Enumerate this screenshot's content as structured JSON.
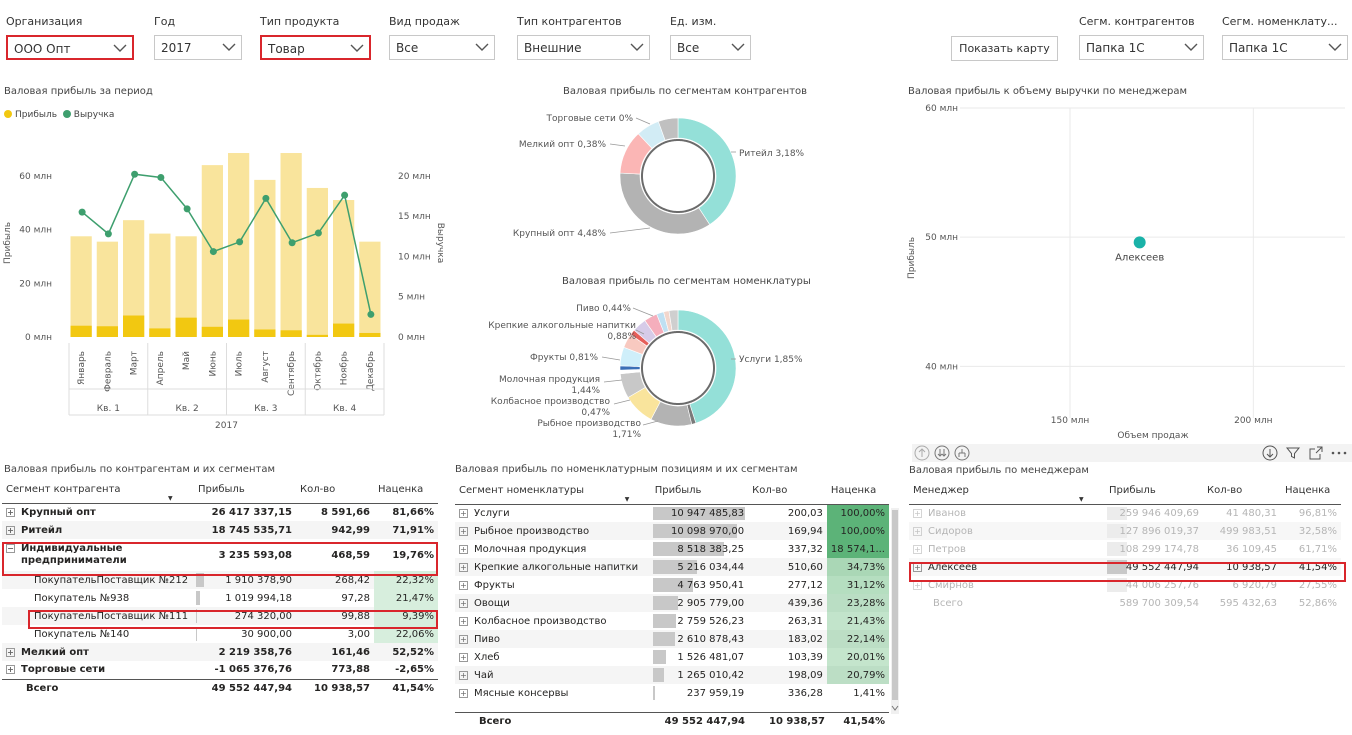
{
  "slicers": [
    {
      "label": "Организация",
      "value": "ООО Опт"
    },
    {
      "label": "Год",
      "value": "2017"
    },
    {
      "label": "Тип продукта",
      "value": "Товар"
    },
    {
      "label": "Вид продаж",
      "value": "Все"
    },
    {
      "label": "Тип контрагентов",
      "value": "Внешние"
    },
    {
      "label": "Ед. изм.",
      "value": "Все"
    },
    {
      "label": "Сегм. контрагентов",
      "value": "Папка 1С"
    },
    {
      "label": "Сегм. номенклату...",
      "value": "Папка 1С"
    }
  ],
  "show_map_label": "Показать карту",
  "combo": {
    "title": "Валовая прибыль за период",
    "legend": [
      "Прибыль",
      "Выручка"
    ],
    "y_left_label": "Прибыль",
    "y_right_label": "Выручка",
    "y_left_ticks": [
      "60 млн",
      "40 млн",
      "20 млн",
      "0 млн"
    ],
    "y_right_ticks": [
      "20 млн",
      "15 млн",
      "10 млн",
      "5 млн",
      "0 млн"
    ],
    "quarters": [
      "Кв. 1",
      "Кв. 2",
      "Кв. 3",
      "Кв. 4"
    ],
    "year": "2017",
    "colors": {
      "bar_light": "#f9e49c",
      "bar_dark": "#f2c811",
      "line": "#3e9f6e"
    }
  },
  "chart_data": [
    {
      "type": "bar",
      "title": "Валовая прибыль за период",
      "categories": [
        "Январь",
        "Февраль",
        "Март",
        "Апрель",
        "Май",
        "Июнь",
        "Июль",
        "Август",
        "Сентябрь",
        "Октябрь",
        "Ноябрь",
        "Декабрь"
      ],
      "series": [
        {
          "name": "Прибыль",
          "axis": "left",
          "values": [
            4.2,
            4.0,
            8.0,
            3.2,
            7.2,
            3.8,
            6.5,
            2.8,
            2.5,
            0.8,
            5.0,
            1.5
          ]
        },
        {
          "name": "Выручка",
          "axis": "left",
          "values": [
            37.5,
            35.5,
            43.5,
            38.5,
            37.5,
            64,
            68.5,
            58.5,
            68.5,
            55.5,
            51,
            35.5
          ]
        },
        {
          "name": "Выручка",
          "type": "line",
          "axis": "right",
          "values": [
            15.5,
            12.8,
            20.2,
            19.8,
            15.9,
            10.6,
            11.8,
            17.2,
            11.7,
            12.9,
            17.6,
            2.8
          ]
        }
      ],
      "ylabel": "Прибыль",
      "y2label": "Выручка",
      "ylim": [
        0,
        70
      ],
      "y2lim": [
        0,
        23.33
      ]
    },
    {
      "type": "pie",
      "title": "Валовая прибыль по сегментам контрагентов",
      "slices": [
        {
          "label": "Ритейл 3,18%",
          "value": 40.8,
          "color": "#94e0d8"
        },
        {
          "label": "Крупный опт 4,48%",
          "value": 35.0,
          "color": "#b3b3b3"
        },
        {
          "label": "Мелкий опт 0,38%",
          "value": 12.2,
          "color": "#fbb6b5"
        },
        {
          "label": "Торговые сети 0%",
          "value": 6.5,
          "color": "#d2ecf5"
        },
        {
          "label": "",
          "value": 5.5,
          "color": "#c0c0c0"
        }
      ]
    },
    {
      "type": "pie",
      "title": "Валовая прибыль по сегментам номенклатуры",
      "slices": [
        {
          "label": "Услуги 1,85%",
          "value": 45,
          "color": "#94e0d8"
        },
        {
          "label": "",
          "value": 1.2,
          "color": "#7a7a7a"
        },
        {
          "label": "Рыбное производство 1,71%",
          "value": 11.5,
          "color": "#b3b3b3"
        },
        {
          "label": "Колбасное производство 0,47%",
          "value": 8.8,
          "color": "#f9e49c"
        },
        {
          "label": "Молочная продукция 1,44%",
          "value": 6.9,
          "color": "#c8c8c8"
        },
        {
          "label": "",
          "value": 1.0,
          "color": "#ffffff"
        },
        {
          "label": "",
          "value": 1.2,
          "color": "#3b6fb6"
        },
        {
          "label": "Фрукты 0,81%",
          "value": 5.2,
          "color": "#cfeffa"
        },
        {
          "label": "",
          "value": 4.0,
          "color": "#f8c9c0"
        },
        {
          "label": "",
          "value": 1.5,
          "color": "#e65f5a"
        },
        {
          "label": "Крепкие алкогольные напитки 0,88%",
          "value": 4.0,
          "color": "#d6cbe8"
        },
        {
          "label": "Пиво 0,44%",
          "value": 3.7,
          "color": "#f5aebc"
        },
        {
          "label": "",
          "value": 2.0,
          "color": "#bfe0f2"
        },
        {
          "label": "",
          "value": 1.5,
          "color": "#f2d6cc"
        },
        {
          "label": "",
          "value": 2.5,
          "color": "#cfcfcf"
        }
      ]
    },
    {
      "type": "scatter",
      "title": "Валовая прибыль к объему выручки по менеджерам",
      "xlabel": "Объем продаж",
      "ylabel": "Прибыль",
      "x_ticks": [
        "150 млн",
        "200 млн"
      ],
      "y_ticks": [
        "60 млн",
        "50 млн",
        "40 млн"
      ],
      "points": [
        {
          "label": "Алексеев",
          "x": 169,
          "y": 49.6
        }
      ],
      "xlim": [
        120,
        225
      ],
      "ylim": [
        36,
        60
      ],
      "color": "#1ab2a8"
    }
  ],
  "donut1": {
    "title": "Валовая прибыль по сегментам контрагентов"
  },
  "donut2": {
    "title": "Валовая прибыль по сегментам номенклатуры"
  },
  "scatter": {
    "title": "Валовая прибыль к объему выручки по менеджерам",
    "xlabel": "Объем продаж",
    "ylabel": "Прибыль",
    "point_label": "Алексеев"
  },
  "t1": {
    "title": "Валовая прибыль по контрагентам и их сегментам",
    "headers": [
      "Сегмент контрагента",
      "Прибыль",
      "Кол-во",
      "Наценка"
    ],
    "rows": [
      {
        "expander": "+",
        "name": "Крупный опт",
        "profit": "26 417 337,15",
        "qty": "8 591,66",
        "markup": "81,66%",
        "bold": true
      },
      {
        "expander": "+",
        "name": "Ритейл",
        "profit": "18 745 535,71",
        "qty": "942,99",
        "markup": "71,91%",
        "bold": true
      },
      {
        "expander": "−",
        "name": "Индивидуальные предприниматели",
        "profit": "3 235 593,08",
        "qty": "468,59",
        "markup": "19,76%",
        "bold": true
      },
      {
        "name": "ПокупательПоставщик №212",
        "profit": "1 910 378,90",
        "qty": "268,42",
        "markup": "22,32%",
        "child": true,
        "bar": 0.6
      },
      {
        "name": "Покупатель №938",
        "profit": "1 019 994,18",
        "qty": "97,28",
        "markup": "21,47%",
        "child": true,
        "bar": 0.32
      },
      {
        "name": "ПокупательПоставщик №111",
        "profit": "274 320,00",
        "qty": "99,88",
        "markup": "9,39%",
        "child": true,
        "bar": 0.09
      },
      {
        "name": "Покупатель №140",
        "profit": "30 900,00",
        "qty": "3,00",
        "markup": "22,06%",
        "child": true,
        "bar": 0.01
      },
      {
        "expander": "+",
        "name": "Мелкий опт",
        "profit": "2 219 358,76",
        "qty": "161,46",
        "markup": "52,52%",
        "bold": true
      },
      {
        "expander": "+",
        "name": "Торговые сети",
        "profit": "-1 065 376,76",
        "qty": "773,88",
        "markup": "-2,65%",
        "bold": true
      },
      {
        "name": "Всего",
        "profit": "49 552 447,94",
        "qty": "10 938,57",
        "markup": "41,54%",
        "bold": true,
        "total": true
      }
    ]
  },
  "t2": {
    "title": "Валовая прибыль по номенклатурным позициям и их сегментам",
    "headers": [
      "Сегмент номенклатуры",
      "Прибыль",
      "Кол-во",
      "Наценка"
    ],
    "rows": [
      {
        "name": "Услуги",
        "profit": "10 947 485,83",
        "qty": "200,03",
        "markup": "100,00%",
        "bar": 1.0,
        "green": 1.0
      },
      {
        "name": "Рыбное производство",
        "profit": "10 098 970,00",
        "qty": "169,94",
        "markup": "100,00%",
        "bar": 0.92,
        "green": 1.0
      },
      {
        "name": "Молочная продукция",
        "profit": "8 518 383,25",
        "qty": "337,32",
        "markup": "18 574,1...",
        "bar": 0.78,
        "green": 1.0
      },
      {
        "name": "Крепкие алкогольные напитки",
        "profit": "5 216 034,44",
        "qty": "510,60",
        "markup": "34,73%",
        "bar": 0.48,
        "green": 0.35
      },
      {
        "name": "Фрукты",
        "profit": "4 763 950,41",
        "qty": "277,12",
        "markup": "31,12%",
        "bar": 0.44,
        "green": 0.3
      },
      {
        "name": "Овощи",
        "profit": "2 905 779,00",
        "qty": "439,36",
        "markup": "23,28%",
        "bar": 0.27,
        "green": 0.22
      },
      {
        "name": "Колбасное производство",
        "profit": "2 759 526,23",
        "qty": "263,31",
        "markup": "21,43%",
        "bar": 0.25,
        "green": 0.2
      },
      {
        "name": "Пиво",
        "profit": "2 610 878,43",
        "qty": "183,02",
        "markup": "22,14%",
        "bar": 0.24,
        "green": 0.21
      },
      {
        "name": "Хлеб",
        "profit": "1 526 481,07",
        "qty": "103,39",
        "markup": "20,01%",
        "bar": 0.14,
        "green": 0.19
      },
      {
        "name": "Чай",
        "profit": "1 265 010,42",
        "qty": "198,09",
        "markup": "20,79%",
        "bar": 0.12,
        "green": 0.2
      },
      {
        "name": "Мясные консервы",
        "profit": "237 959,19",
        "qty": "336,28",
        "markup": "1,41%",
        "bar": 0.02,
        "green": 0.0
      }
    ],
    "total": {
      "name": "Всего",
      "profit": "49 552 447,94",
      "qty": "10 938,57",
      "markup": "41,54%"
    }
  },
  "t3": {
    "title": "Валовая прибыль по менеджерам",
    "headers": [
      "Менеджер",
      "Прибыль",
      "Кол-во",
      "Наценка"
    ],
    "rows": [
      {
        "name": "Иванов",
        "profit": "259 946 409,69",
        "qty": "41 480,31",
        "markup": "96,81%",
        "faded": true
      },
      {
        "name": "Сидоров",
        "profit": "127 896 019,37",
        "qty": "499 983,51",
        "markup": "32,58%",
        "faded": true
      },
      {
        "name": "Петров",
        "profit": "108 299 174,78",
        "qty": "36 109,45",
        "markup": "61,71%",
        "faded": true
      },
      {
        "name": "Алексеев",
        "profit": "49 552 447,94",
        "qty": "10 938,57",
        "markup": "41,54%",
        "faded": false
      },
      {
        "name": "Смирнов",
        "profit": "44 006 257,76",
        "qty": "6 920,79",
        "markup": "27,55%",
        "faded": true
      }
    ],
    "total": {
      "name": "Всего",
      "profit": "589 700 309,54",
      "qty": "595 432,63",
      "markup": "52,86%"
    }
  }
}
